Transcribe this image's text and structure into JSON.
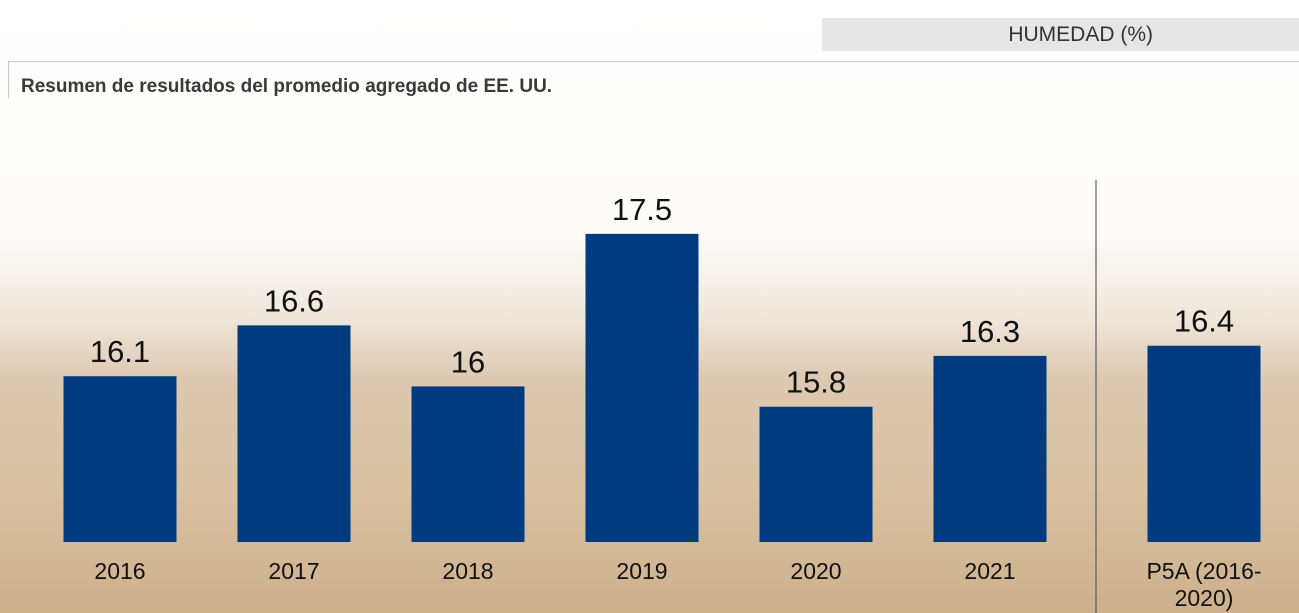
{
  "chart_data": {
    "type": "bar",
    "header": "HUMEDAD (%)",
    "title": "Resumen de resultados del promedio agregado de EE. UU.",
    "categories": [
      "2016",
      "2017",
      "2018",
      "2019",
      "2020",
      "2021",
      "P5A (2016-2020)"
    ],
    "values": [
      16.1,
      16.6,
      16.0,
      17.5,
      15.8,
      16.3,
      16.4
    ],
    "color": "#003b80",
    "ylim": [
      14.47,
      18
    ]
  }
}
